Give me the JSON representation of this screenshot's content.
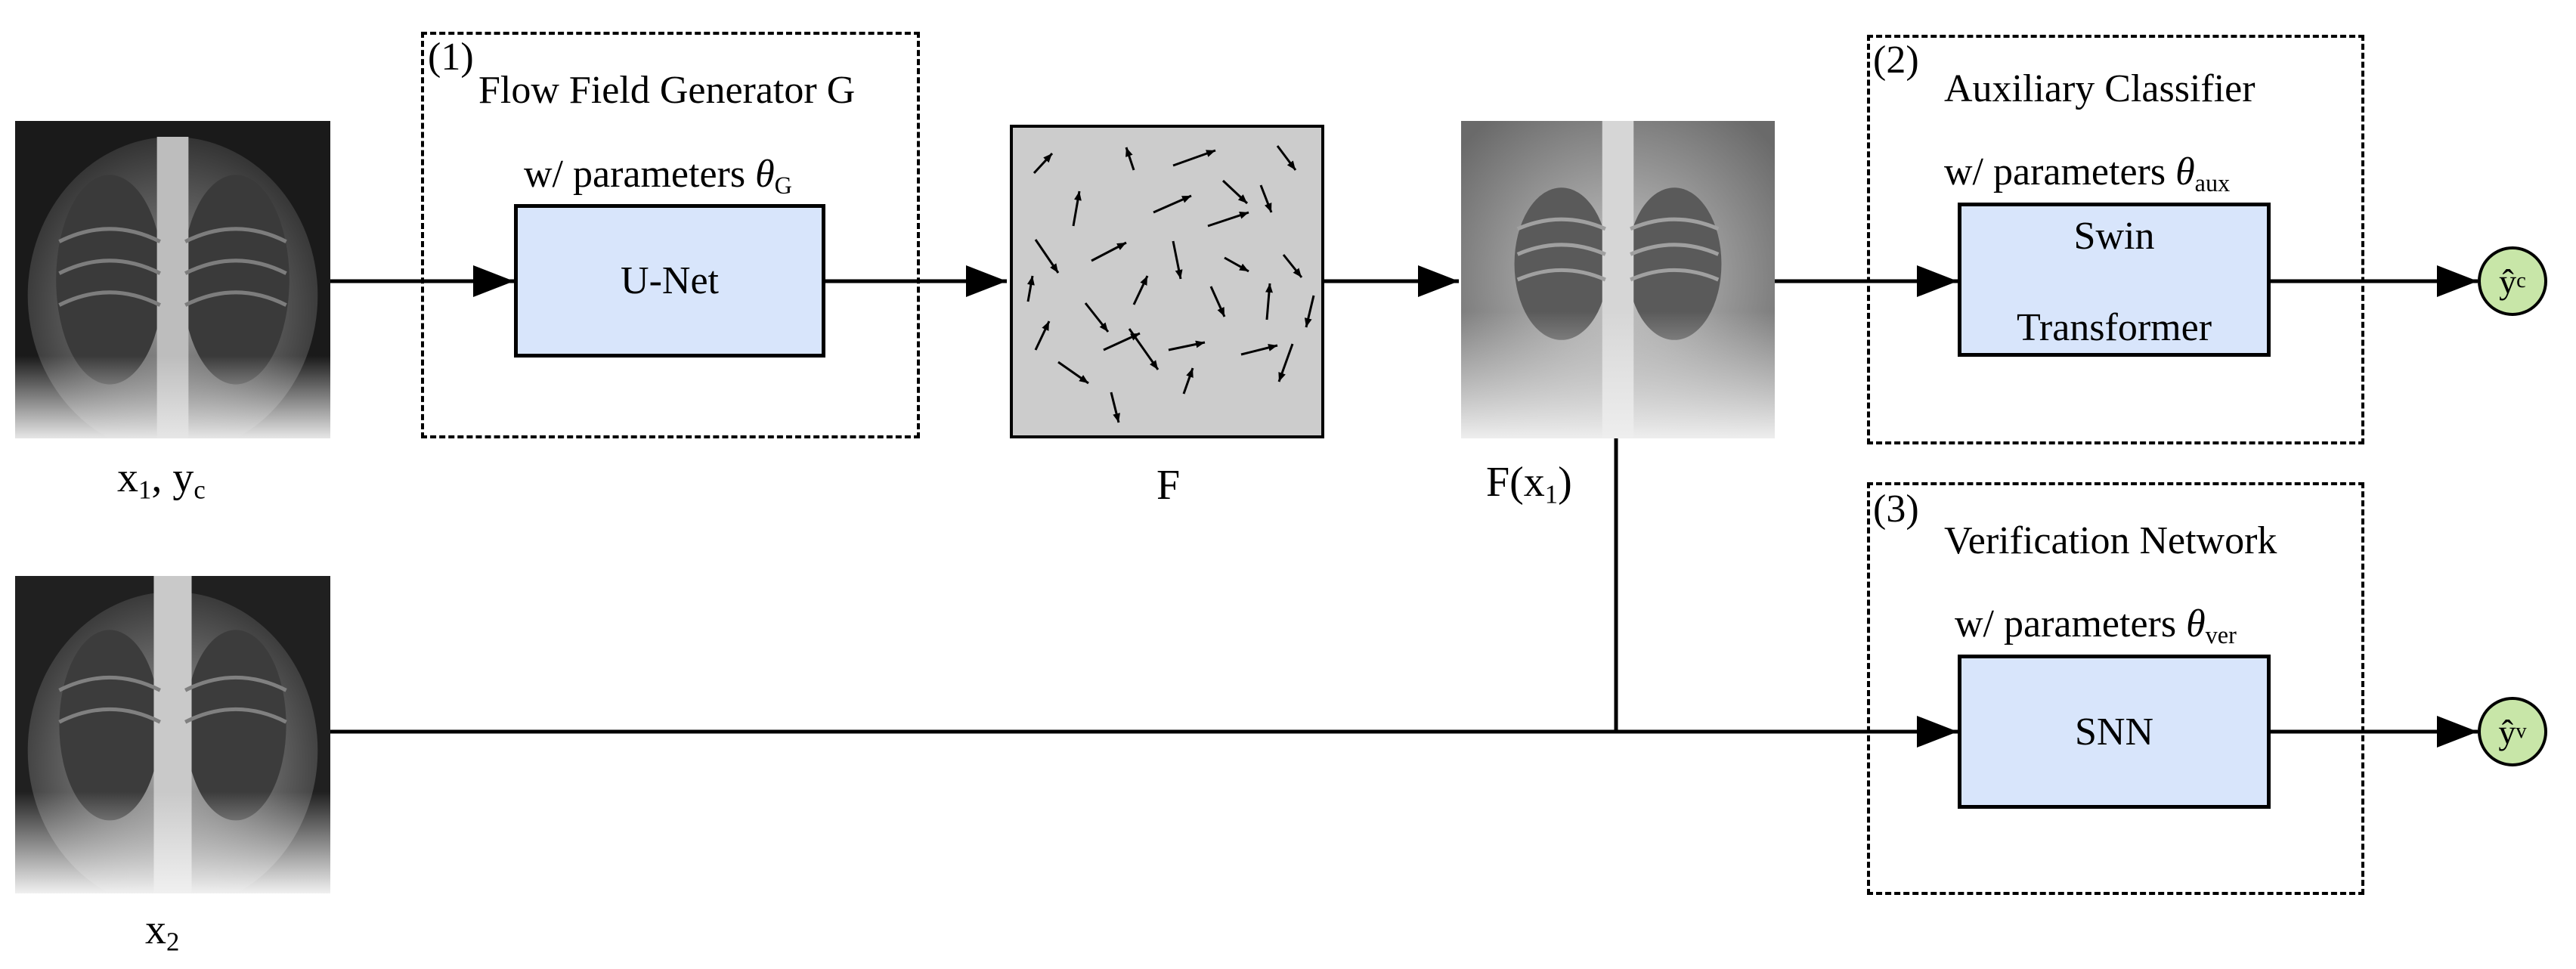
{
  "modules": {
    "generator": {
      "number": "(1)",
      "title": "Flow Field Generator G",
      "params_prefix": "w/ parameters ",
      "theta": "θ",
      "params_sub": "G",
      "block_label": "U-Net"
    },
    "classifier": {
      "number": "(2)",
      "title": "Auxiliary Classifier",
      "params_prefix": "w/ parameters ",
      "theta": "θ",
      "params_sub": "aux",
      "block_line1": "Swin",
      "block_line2": "Transformer"
    },
    "verifier": {
      "number": "(3)",
      "title": "Verification Network",
      "params_prefix": "w/ parameters ",
      "theta": "θ",
      "params_sub": "ver",
      "block_label": "SNN"
    }
  },
  "images": {
    "input1": {
      "label_x": "x",
      "label_x_sub": "1",
      "label_sep": ", y",
      "label_y_sub": "c"
    },
    "input2": {
      "label": "x",
      "label_sub": "2"
    },
    "field": {
      "label": "F"
    },
    "warped": {
      "label_prefix": "F(x",
      "label_sub": "1",
      "label_suffix": ")"
    }
  },
  "outputs": {
    "class_pred": {
      "symbol": "ŷ",
      "sub": "c"
    },
    "verif_pred": {
      "symbol": "ŷ",
      "sub": "v"
    }
  },
  "colors": {
    "block_fill": "#d8e5fb",
    "output_fill": "#c8e6a8",
    "field_fill": "#cccccc",
    "stroke": "#000000"
  }
}
